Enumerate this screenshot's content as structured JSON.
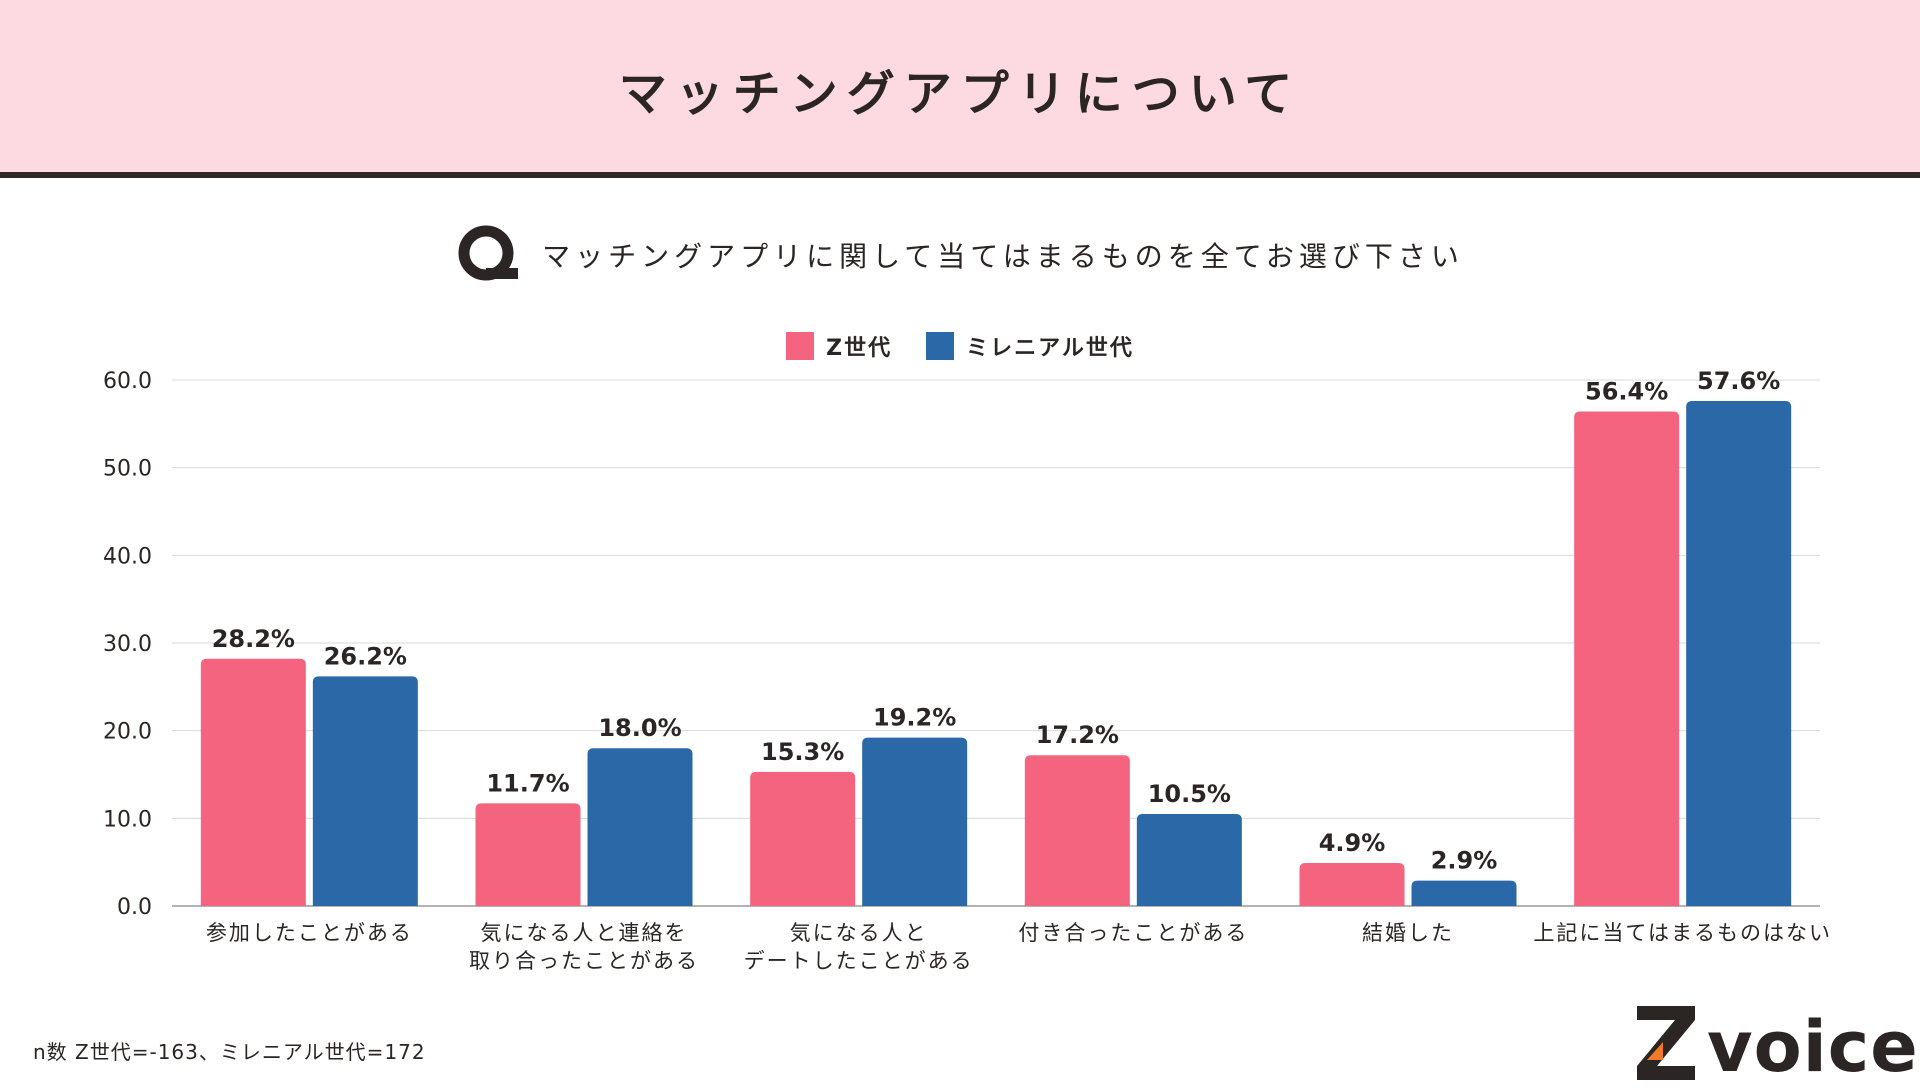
{
  "header": {
    "title": "マッチングアプリについて"
  },
  "question": {
    "icon": "q-icon",
    "text": "マッチングアプリに関して当てはまるものを全てお選び下さい"
  },
  "colors": {
    "gen_z": "#f4647f",
    "millennial": "#2a68a8",
    "header_bg": "#fdd9e1",
    "text": "#2b2523",
    "logo_accent": "#ee7a2a"
  },
  "chart_data": {
    "type": "bar",
    "title": "マッチングアプリに関して当てはまるものを全てお選び下さい",
    "categories": [
      [
        "参加したことがある"
      ],
      [
        "気になる人と連絡を",
        "取り合ったことがある"
      ],
      [
        "気になる人と",
        "デートしたことがある"
      ],
      [
        "付き合ったことがある"
      ],
      [
        "結婚した"
      ],
      [
        "上記に当てはまるものはない"
      ]
    ],
    "series": [
      {
        "name": "Z世代",
        "color": "#f4647f",
        "values": [
          28.2,
          11.7,
          15.3,
          17.2,
          4.9,
          56.4
        ],
        "labels": [
          "28.2%",
          "11.7%",
          "15.3%",
          "17.2%",
          "4.9%",
          "56.4%"
        ]
      },
      {
        "name": "ミレニアル世代",
        "color": "#2a68a8",
        "values": [
          26.2,
          18.0,
          19.2,
          10.5,
          2.9,
          57.6
        ],
        "labels": [
          "26.2%",
          "18.0%",
          "19.2%",
          "10.5%",
          "2.9%",
          "57.6%"
        ]
      }
    ],
    "ylim": [
      0,
      60
    ],
    "yticks": [
      0,
      10,
      20,
      30,
      40,
      50,
      60
    ],
    "ytick_labels": [
      "0.0",
      "10.0",
      "20.0",
      "30.0",
      "40.0",
      "50.0",
      "60.0"
    ],
    "xlabel": "",
    "ylabel": "",
    "grid": true,
    "legend": "top-center"
  },
  "footnote": "n数 Z世代=-163、ミレニアル世代=172",
  "logo": {
    "text": "voice",
    "icon": "z-logo-icon"
  }
}
